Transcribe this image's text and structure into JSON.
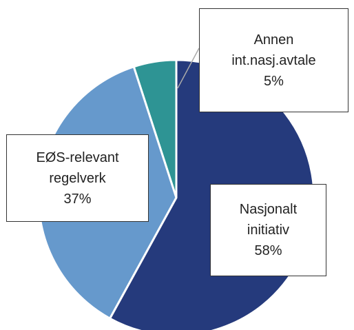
{
  "chart_data": {
    "type": "pie",
    "categories": [
      "Nasjonalt initiativ",
      "EØS-relevant regelverk",
      "Annen int.nasj.avtale"
    ],
    "values": [
      58,
      37,
      5
    ],
    "value_labels": [
      "58%",
      "37%",
      "5%"
    ],
    "colors": [
      "#253a7c",
      "#6699cc",
      "#2e9494"
    ]
  }
}
